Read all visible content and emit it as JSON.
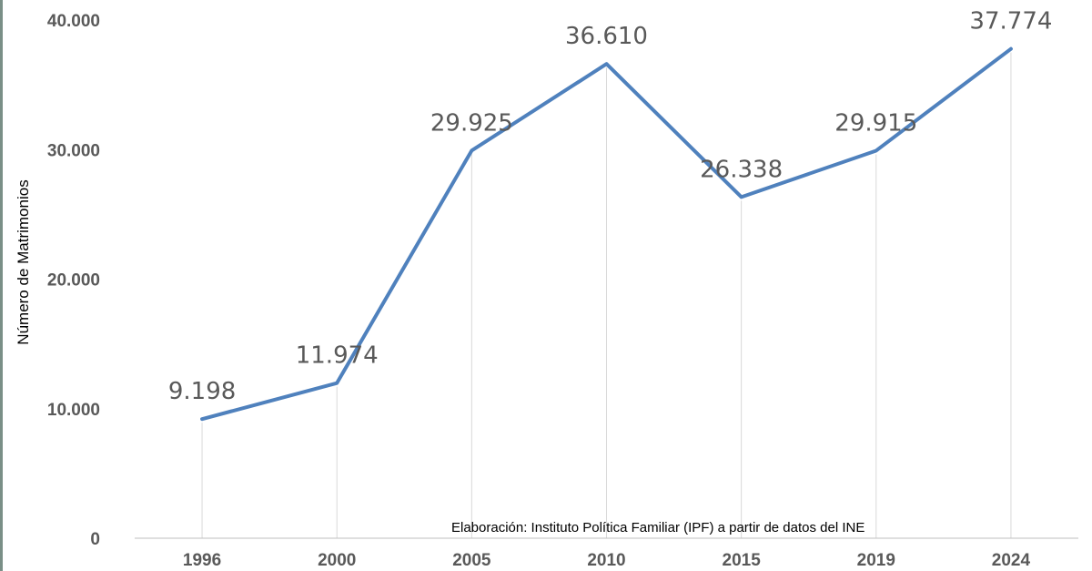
{
  "chart_data": {
    "type": "line",
    "categories": [
      "1996",
      "2000",
      "2005",
      "2010",
      "2015",
      "2019",
      "2024"
    ],
    "series": [
      {
        "values": [
          9198,
          11974,
          29925,
          36610,
          26338,
          29915,
          37774
        ],
        "labels": [
          "9.198",
          "11.974",
          "29.925",
          "36.610",
          "26.338",
          "29.915",
          "37.774"
        ]
      }
    ],
    "ylabel": "Número de Matrimonios",
    "ylim": [
      0,
      40000
    ],
    "yticks": [
      {
        "value": 0,
        "label": "0"
      },
      {
        "value": 10000,
        "label": "10.000"
      },
      {
        "value": 20000,
        "label": "20.000"
      },
      {
        "value": 30000,
        "label": "30.000"
      },
      {
        "value": 40000,
        "label": "40.000"
      }
    ],
    "annotation": "Elaboración: Instituto Política Familiar (IPF) a partir de datos del INE",
    "grid": "vertical",
    "colors": {
      "line": "#4f81bd",
      "grid": "#d9d9d9",
      "axis": "#bfbfbf",
      "text": "#595959"
    }
  }
}
